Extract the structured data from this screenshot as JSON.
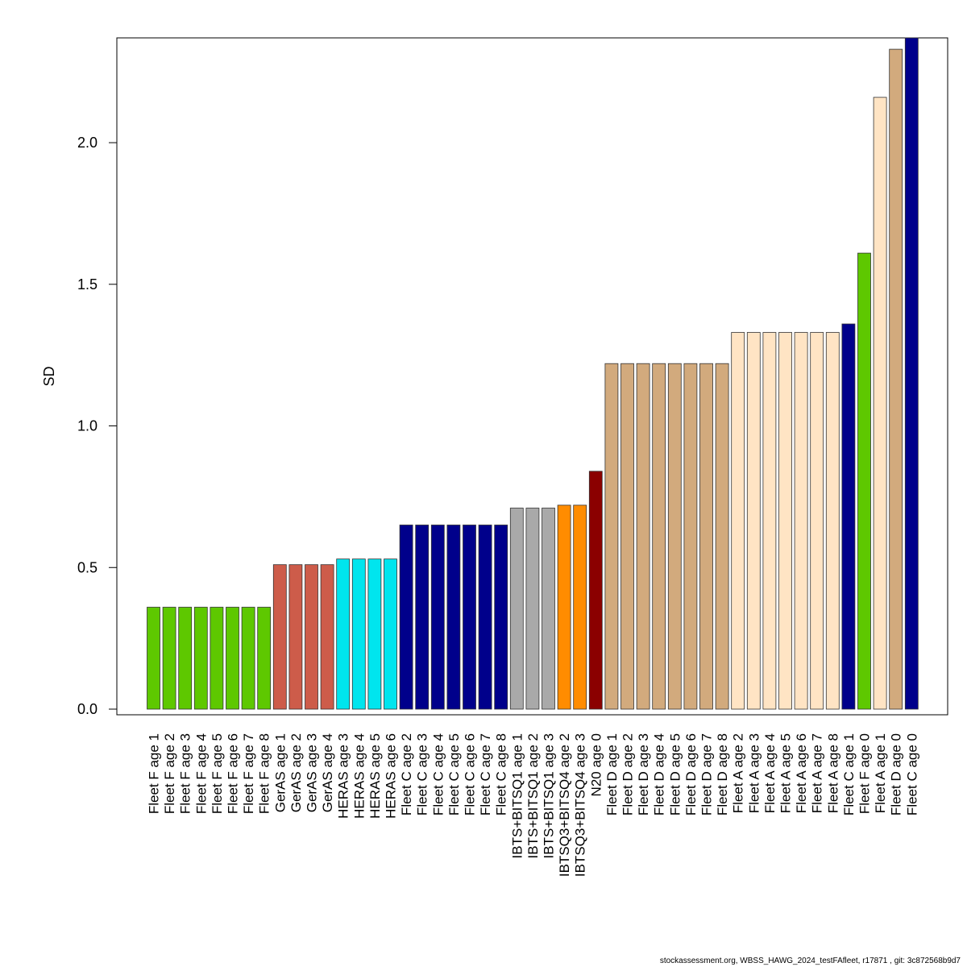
{
  "chart_data": {
    "type": "bar",
    "ylabel": "SD",
    "xlabel": "",
    "ylim": [
      0,
      2.37
    ],
    "yticks": [
      0.0,
      0.5,
      1.0,
      1.5,
      2.0
    ],
    "ytick_labels": [
      "0.0",
      "0.5",
      "1.0",
      "1.5",
      "2.0"
    ],
    "grid": false,
    "legend": "none",
    "categories": [
      "Fleet F age 1",
      "Fleet F age 2",
      "Fleet F age 3",
      "Fleet F age 4",
      "Fleet F age 5",
      "Fleet F age 6",
      "Fleet F age 7",
      "Fleet F age 8",
      "GerAS age 1",
      "GerAS age 2",
      "GerAS age 3",
      "GerAS age 4",
      "HERAS age 3",
      "HERAS age 4",
      "HERAS age 5",
      "HERAS age 6",
      "Fleet C age 2",
      "Fleet C age 3",
      "Fleet C age 4",
      "Fleet C age 5",
      "Fleet C age 6",
      "Fleet C age 7",
      "Fleet C age 8",
      "IBTS+BITSQ1 age 1",
      "IBTS+BITSQ1 age 2",
      "IBTS+BITSQ1 age 3",
      "IBTSQ3+BITSQ4 age 2",
      "IBTSQ3+BITSQ4 age 3",
      "N20 age 0",
      "Fleet D age 1",
      "Fleet D age 2",
      "Fleet D age 3",
      "Fleet D age 4",
      "Fleet D age 5",
      "Fleet D age 6",
      "Fleet D age 7",
      "Fleet D age 8",
      "Fleet A age 2",
      "Fleet A age 3",
      "Fleet A age 4",
      "Fleet A age 5",
      "Fleet A age 6",
      "Fleet A age 7",
      "Fleet A age 8",
      "Fleet C age 1",
      "Fleet F age 0",
      "Fleet A age 1",
      "Fleet D age 0",
      "Fleet C age 0"
    ],
    "values": [
      0.36,
      0.36,
      0.36,
      0.36,
      0.36,
      0.36,
      0.36,
      0.36,
      0.51,
      0.51,
      0.51,
      0.51,
      0.53,
      0.53,
      0.53,
      0.53,
      0.65,
      0.65,
      0.65,
      0.65,
      0.65,
      0.65,
      0.65,
      0.71,
      0.71,
      0.71,
      0.72,
      0.72,
      0.84,
      1.22,
      1.22,
      1.22,
      1.22,
      1.22,
      1.22,
      1.22,
      1.22,
      1.33,
      1.33,
      1.33,
      1.33,
      1.33,
      1.33,
      1.33,
      1.36,
      1.61,
      2.16,
      2.33,
      2.37
    ],
    "colors": [
      "#5ec800",
      "#5ec800",
      "#5ec800",
      "#5ec800",
      "#5ec800",
      "#5ec800",
      "#5ec800",
      "#5ec800",
      "#cd5c4a",
      "#cd5c4a",
      "#cd5c4a",
      "#cd5c4a",
      "#00e5ee",
      "#00e5ee",
      "#00e5ee",
      "#00e5ee",
      "#00008b",
      "#00008b",
      "#00008b",
      "#00008b",
      "#00008b",
      "#00008b",
      "#00008b",
      "#a9a9a9",
      "#a9a9a9",
      "#a9a9a9",
      "#ff8c00",
      "#ff8c00",
      "#8b0000",
      "#d2aa7d",
      "#d2aa7d",
      "#d2aa7d",
      "#d2aa7d",
      "#d2aa7d",
      "#d2aa7d",
      "#d2aa7d",
      "#d2aa7d",
      "#ffe4c4",
      "#ffe4c4",
      "#ffe4c4",
      "#ffe4c4",
      "#ffe4c4",
      "#ffe4c4",
      "#ffe4c4",
      "#00008b",
      "#5ec800",
      "#ffe4c4",
      "#d2aa7d",
      "#00008b"
    ]
  },
  "footer": "stockassessment.org, WBSS_HAWG_2024_testFAfleet, r17871 , git: 3c872568b9d7"
}
